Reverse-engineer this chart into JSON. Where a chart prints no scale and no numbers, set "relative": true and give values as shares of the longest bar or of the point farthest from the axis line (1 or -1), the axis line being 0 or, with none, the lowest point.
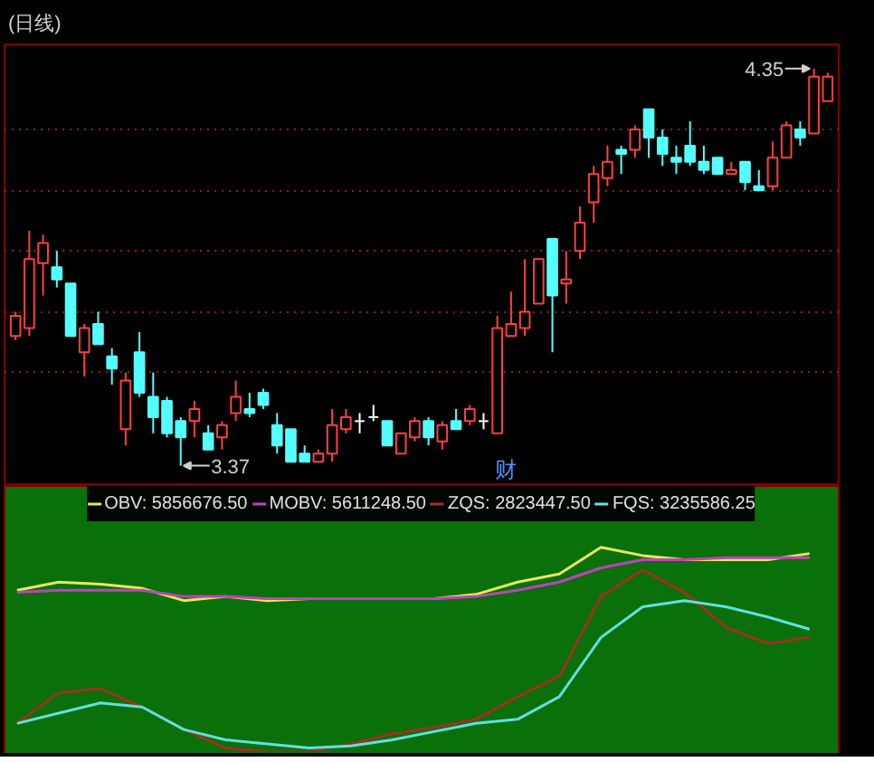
{
  "chart_data": [
    {
      "type": "candlestick",
      "title": "(日线)",
      "categories": [
        null,
        null,
        null,
        null,
        null,
        null,
        null,
        null,
        null,
        null,
        null,
        null,
        null,
        null,
        null,
        null,
        null,
        null,
        null,
        null,
        null,
        null,
        null,
        null,
        null,
        null,
        null,
        null,
        null,
        null,
        null,
        null,
        null,
        null,
        null,
        null,
        null,
        null,
        null,
        null,
        null,
        null,
        null,
        null,
        null,
        null,
        null,
        null,
        null,
        null,
        null,
        null,
        null,
        null,
        null,
        null,
        null,
        null,
        null,
        null
      ],
      "ohlc": [
        [
          3.69,
          3.75,
          3.68,
          3.74
        ],
        [
          3.71,
          3.95,
          3.69,
          3.88
        ],
        [
          3.87,
          3.94,
          3.79,
          3.92
        ],
        [
          3.86,
          3.9,
          3.81,
          3.83
        ],
        [
          3.82,
          3.82,
          3.69,
          3.69
        ],
        [
          3.65,
          3.72,
          3.59,
          3.71
        ],
        [
          3.72,
          3.75,
          3.67,
          3.67
        ],
        [
          3.64,
          3.66,
          3.57,
          3.61
        ],
        [
          3.46,
          3.6,
          3.42,
          3.58
        ],
        [
          3.65,
          3.7,
          3.54,
          3.55
        ],
        [
          3.54,
          3.6,
          3.45,
          3.49
        ],
        [
          3.53,
          3.54,
          3.44,
          3.45
        ],
        [
          3.48,
          3.49,
          3.37,
          3.44
        ],
        [
          3.48,
          3.53,
          3.44,
          3.51
        ],
        [
          3.45,
          3.47,
          3.41,
          3.41
        ],
        [
          3.44,
          3.48,
          3.41,
          3.47
        ],
        [
          3.5,
          3.58,
          3.48,
          3.54
        ],
        [
          3.51,
          3.55,
          3.49,
          3.5
        ],
        [
          3.55,
          3.56,
          3.51,
          3.52
        ],
        [
          3.47,
          3.5,
          3.4,
          3.42
        ],
        [
          3.46,
          3.46,
          3.38,
          3.38
        ],
        [
          3.4,
          3.42,
          3.38,
          3.38
        ],
        [
          3.38,
          3.41,
          3.38,
          3.4
        ],
        [
          3.4,
          3.51,
          3.38,
          3.47
        ],
        [
          3.46,
          3.51,
          3.45,
          3.49
        ],
        [
          3.48,
          3.5,
          3.45,
          3.48
        ],
        [
          3.49,
          3.52,
          3.48,
          3.49
        ],
        [
          3.48,
          3.48,
          3.42,
          3.42
        ],
        [
          3.4,
          3.45,
          3.4,
          3.45
        ],
        [
          3.44,
          3.49,
          3.43,
          3.48
        ],
        [
          3.48,
          3.49,
          3.42,
          3.44
        ],
        [
          3.43,
          3.48,
          3.41,
          3.47
        ],
        [
          3.48,
          3.51,
          3.46,
          3.46
        ],
        [
          3.48,
          3.52,
          3.47,
          3.51
        ],
        [
          3.48,
          3.5,
          3.46,
          3.48
        ],
        [
          3.45,
          3.74,
          3.45,
          3.71
        ],
        [
          3.69,
          3.8,
          3.69,
          3.72
        ],
        [
          3.71,
          3.88,
          3.69,
          3.75
        ],
        [
          3.77,
          3.88,
          3.77,
          3.88
        ],
        [
          3.93,
          3.93,
          3.65,
          3.79
        ],
        [
          3.82,
          3.9,
          3.77,
          3.83
        ],
        [
          3.9,
          4.01,
          3.88,
          3.97
        ],
        [
          4.02,
          4.11,
          3.97,
          4.09
        ],
        [
          4.08,
          4.16,
          4.06,
          4.12
        ],
        [
          4.15,
          4.16,
          4.09,
          4.14
        ],
        [
          4.15,
          4.21,
          4.13,
          4.2
        ],
        [
          4.25,
          4.25,
          4.13,
          4.18
        ],
        [
          4.18,
          4.2,
          4.11,
          4.14
        ],
        [
          4.13,
          4.16,
          4.09,
          4.12
        ],
        [
          4.16,
          4.22,
          4.11,
          4.12
        ],
        [
          4.12,
          4.16,
          4.09,
          4.1
        ],
        [
          4.13,
          4.13,
          4.09,
          4.09
        ],
        [
          4.09,
          4.12,
          4.09,
          4.1
        ],
        [
          4.12,
          4.12,
          4.05,
          4.07
        ],
        [
          4.06,
          4.1,
          4.05,
          4.05
        ],
        [
          4.06,
          4.17,
          4.05,
          4.13
        ],
        [
          4.13,
          4.22,
          4.13,
          4.21
        ],
        [
          4.2,
          4.22,
          4.16,
          4.18
        ],
        [
          4.19,
          4.35,
          4.19,
          4.33
        ],
        [
          4.27,
          4.34,
          4.27,
          4.33
        ]
      ],
      "ylim": [
        3.32,
        4.41
      ],
      "yticks": [
        {
          "value": 3.6,
          "label": null
        },
        {
          "value": 3.75,
          "label": null
        },
        {
          "value": 3.9,
          "label": null
        },
        {
          "value": 4.05,
          "label": null
        },
        {
          "value": 4.2,
          "label": null
        }
      ],
      "grid": "y",
      "tick_labels": false,
      "annotations": [
        "4.35",
        "3.37",
        "财"
      ]
    },
    {
      "type": "line",
      "relative": true,
      "legend": "top",
      "tick_labels": false,
      "grid": false,
      "categories": [
        null,
        null,
        null,
        null,
        null,
        null,
        null,
        null,
        null,
        null,
        null,
        null,
        null,
        null,
        null,
        null,
        null,
        null,
        null,
        null
      ],
      "series": [
        {
          "name": "OBV: 5856676.50",
          "color": "#e8e85a",
          "values": [
            0.79,
            0.83,
            0.82,
            0.8,
            0.74,
            0.76,
            0.74,
            0.75,
            0.75,
            0.75,
            0.75,
            0.77,
            0.83,
            0.87,
            1.0,
            0.96,
            0.94,
            0.94,
            0.94,
            0.97
          ]
        },
        {
          "name": "MOBV: 5611248.50",
          "color": "#c040c0",
          "values": [
            0.78,
            0.79,
            0.79,
            0.79,
            0.76,
            0.76,
            0.75,
            0.75,
            0.75,
            0.75,
            0.75,
            0.76,
            0.79,
            0.83,
            0.9,
            0.94,
            0.94,
            0.95,
            0.95,
            0.95
          ]
        },
        {
          "name": "ZQS: 2823447.50",
          "color": "#a03020",
          "values": [
            0.14,
            0.29,
            0.31,
            0.22,
            0.11,
            0.02,
            0,
            0,
            0.04,
            0.09,
            0.12,
            0.16,
            0.27,
            0.37,
            0.76,
            0.89,
            0.78,
            0.61,
            0.53,
            0.56
          ]
        },
        {
          "name": "FQS: 3235586.25",
          "color": "#60e0e0",
          "values": [
            0.14,
            0.19,
            0.24,
            0.22,
            0.11,
            0.06,
            0.04,
            0.02,
            0.03,
            0.06,
            0.1,
            0.14,
            0.16,
            0.27,
            0.56,
            0.71,
            0.74,
            0.71,
            0.66,
            0.6
          ]
        }
      ]
    }
  ]
}
